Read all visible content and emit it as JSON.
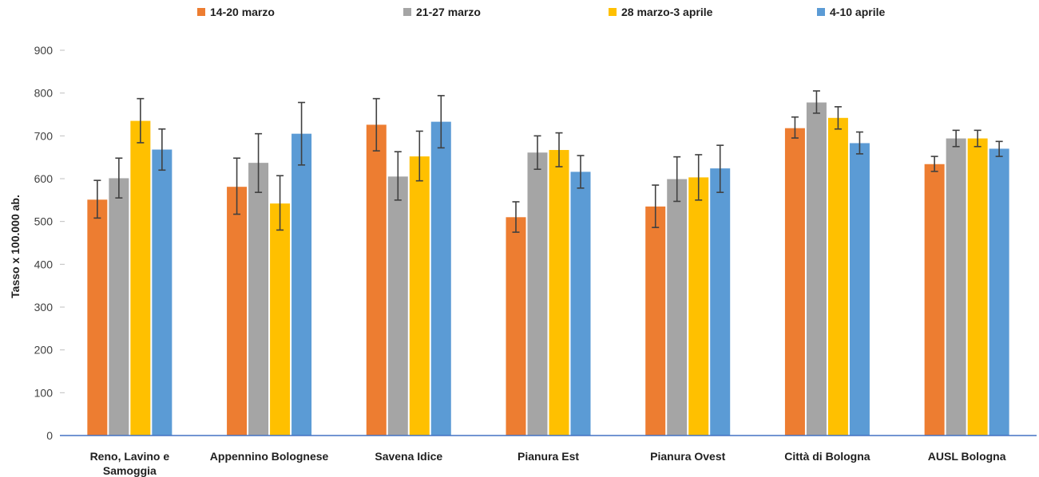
{
  "chart_data": {
    "type": "bar",
    "title": "",
    "xlabel": "",
    "ylabel": "Tasso x 100.000 ab.",
    "ylim": [
      0,
      900
    ],
    "yticks": [
      0,
      100,
      200,
      300,
      400,
      500,
      600,
      700,
      800,
      900
    ],
    "grid": false,
    "legend_position": "top",
    "categories": [
      [
        "Reno, Lavino e",
        "Samoggia"
      ],
      [
        "Appennino Bolognese"
      ],
      [
        "Savena Idice"
      ],
      [
        "Pianura Est"
      ],
      [
        "Pianura Ovest"
      ],
      [
        "Città di Bologna"
      ],
      [
        "AUSL Bologna"
      ]
    ],
    "series": [
      {
        "name": "14-20 marzo",
        "color": "#ED7D31",
        "values": [
          551,
          581,
          726,
          510,
          535,
          718,
          634
        ],
        "error_low": [
          508,
          517,
          665,
          475,
          486,
          695,
          617
        ],
        "error_high": [
          596,
          648,
          787,
          546,
          585,
          744,
          652
        ]
      },
      {
        "name": "21-27 marzo",
        "color": "#A5A5A5",
        "values": [
          601,
          637,
          605,
          661,
          599,
          778,
          694
        ],
        "error_low": [
          555,
          568,
          550,
          622,
          547,
          753,
          675
        ],
        "error_high": [
          648,
          705,
          663,
          700,
          651,
          805,
          713
        ]
      },
      {
        "name": "28 marzo-3 aprile",
        "color": "#FFC000",
        "values": [
          735,
          542,
          652,
          667,
          603,
          742,
          694
        ],
        "error_low": [
          684,
          480,
          595,
          628,
          550,
          716,
          675
        ],
        "error_high": [
          787,
          607,
          711,
          707,
          656,
          768,
          713
        ]
      },
      {
        "name": "4-10 aprile",
        "color": "#5B9BD5",
        "values": [
          668,
          705,
          733,
          616,
          624,
          683,
          670
        ],
        "error_low": [
          620,
          632,
          672,
          578,
          568,
          658,
          652
        ],
        "error_high": [
          716,
          778,
          794,
          654,
          678,
          709,
          687
        ]
      }
    ]
  }
}
